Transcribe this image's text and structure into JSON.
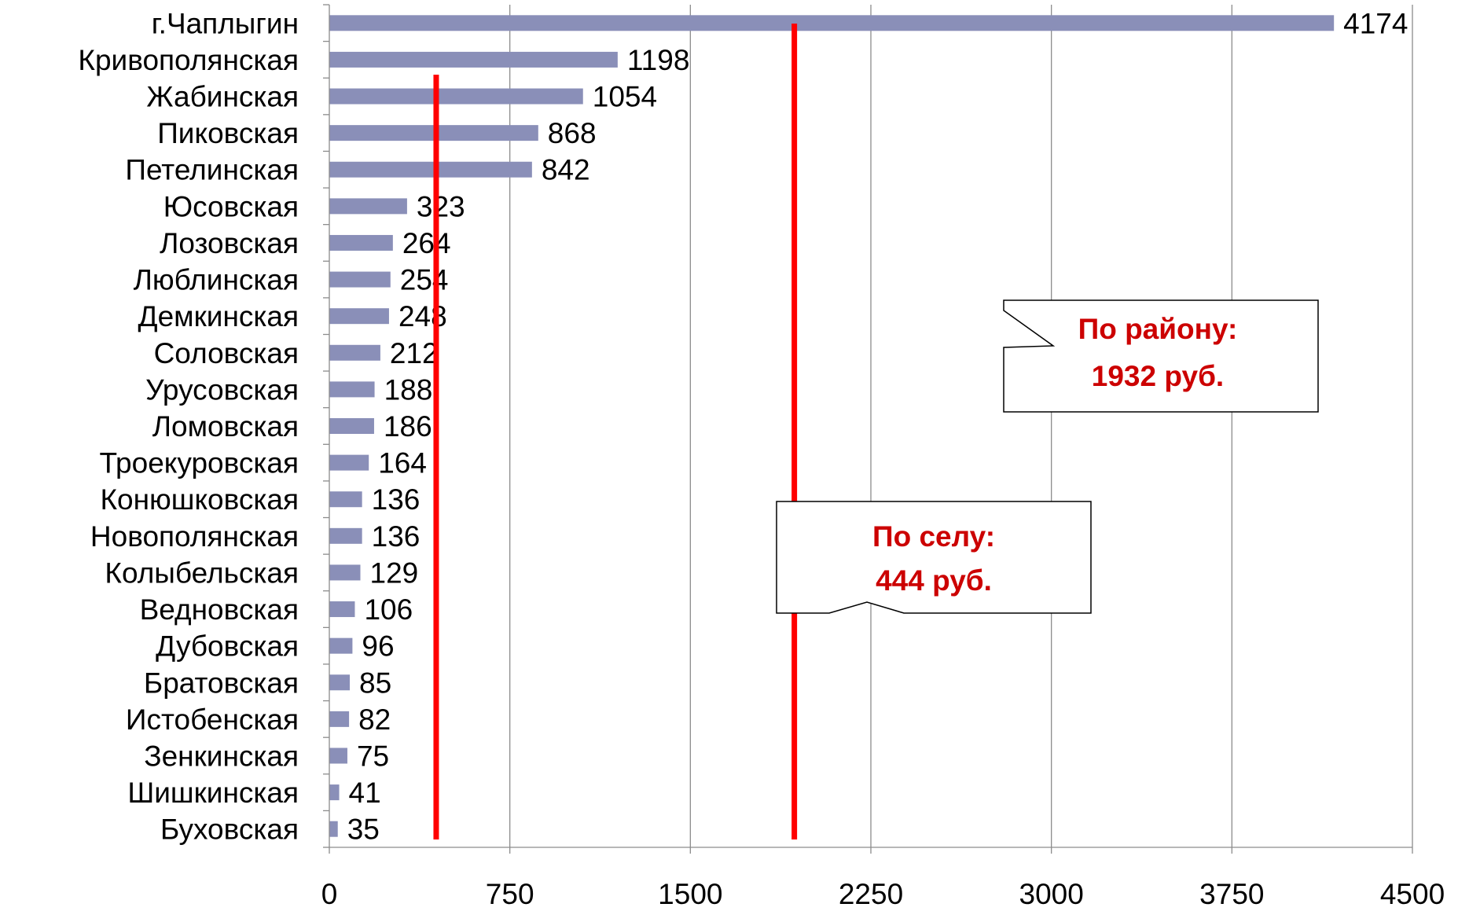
{
  "chart_data": {
    "type": "bar",
    "orientation": "horizontal",
    "categories": [
      "г.Чаплыгин",
      "Кривополянская",
      "Жабинская",
      "Пиковская",
      "Петелинская",
      "Юсовская",
      "Лозовская",
      "Люблинская",
      "Демкинская",
      "Соловская",
      "Урусовская",
      "Ломовская",
      "Троекуровская",
      "Конюшковская",
      "Новополянская",
      "Колыбельская",
      "Ведновская",
      "Дубовская",
      "Братовская",
      "Истобенская",
      "Зенкинская",
      "Шишкинская",
      "Буховская"
    ],
    "values": [
      4174,
      1198,
      1054,
      868,
      842,
      323,
      264,
      254,
      248,
      212,
      188,
      186,
      164,
      136,
      136,
      129,
      106,
      96,
      85,
      82,
      75,
      41,
      35
    ],
    "value_labels": [
      "4174",
      "1198",
      "1054",
      "868",
      "842",
      "323",
      "264",
      "254",
      "248",
      "212",
      "188",
      "186",
      "164",
      "136",
      "136",
      "129",
      "106",
      "96",
      "85",
      "82",
      "75",
      "41",
      "35"
    ],
    "xlim": [
      0,
      4500
    ],
    "x_ticks": [
      "0",
      "750",
      "1500",
      "2250",
      "3000",
      "3750",
      "4500"
    ],
    "grid": "vertical",
    "bar_color": "#8a8fb8",
    "reference_lines": [
      {
        "value": 444,
        "color": "#ff0000",
        "callout_lines": [
          "По селу:",
          "444 руб."
        ]
      },
      {
        "value": 1932,
        "color": "#ff0000",
        "callout_lines": [
          "По району:",
          "1932 руб."
        ]
      }
    ],
    "callout_text_color": "#cc0000"
  }
}
